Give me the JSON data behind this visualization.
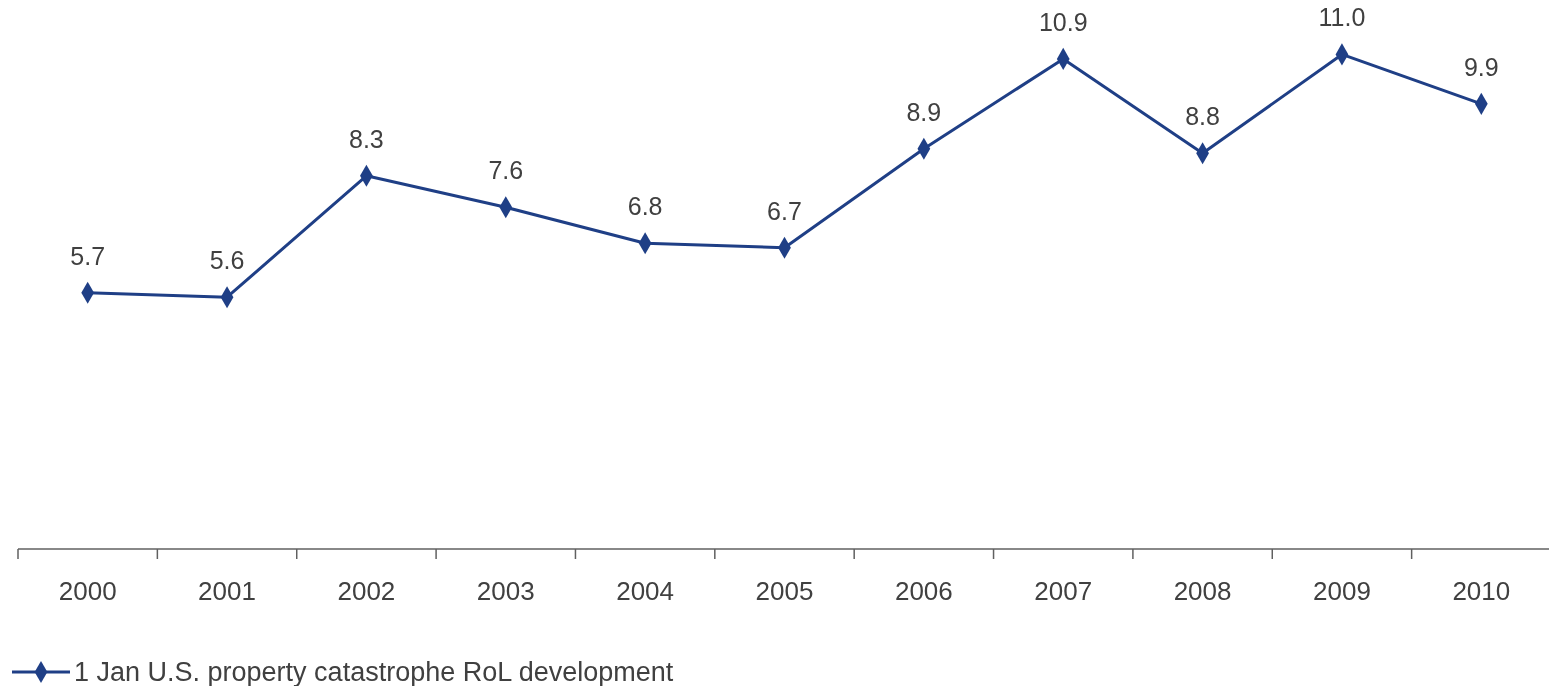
{
  "chart_data": {
    "type": "line",
    "categories": [
      "2000",
      "2001",
      "2002",
      "2003",
      "2004",
      "2005",
      "2006",
      "2007",
      "2008",
      "2009",
      "2010"
    ],
    "series": [
      {
        "name": "1 Jan U.S. property catastrophe RoL development",
        "color": "#1f3f86",
        "values": [
          5.7,
          5.6,
          8.3,
          7.6,
          6.8,
          6.7,
          8.9,
          10.9,
          8.8,
          11.0,
          9.9
        ],
        "value_labels": [
          "5.7",
          "5.6",
          "8.3",
          "7.6",
          "6.8",
          "6.7",
          "8.9",
          "10.9",
          "8.8",
          "11.0",
          "9.9"
        ]
      }
    ],
    "marker": "diamond",
    "legend": "bottom left"
  }
}
